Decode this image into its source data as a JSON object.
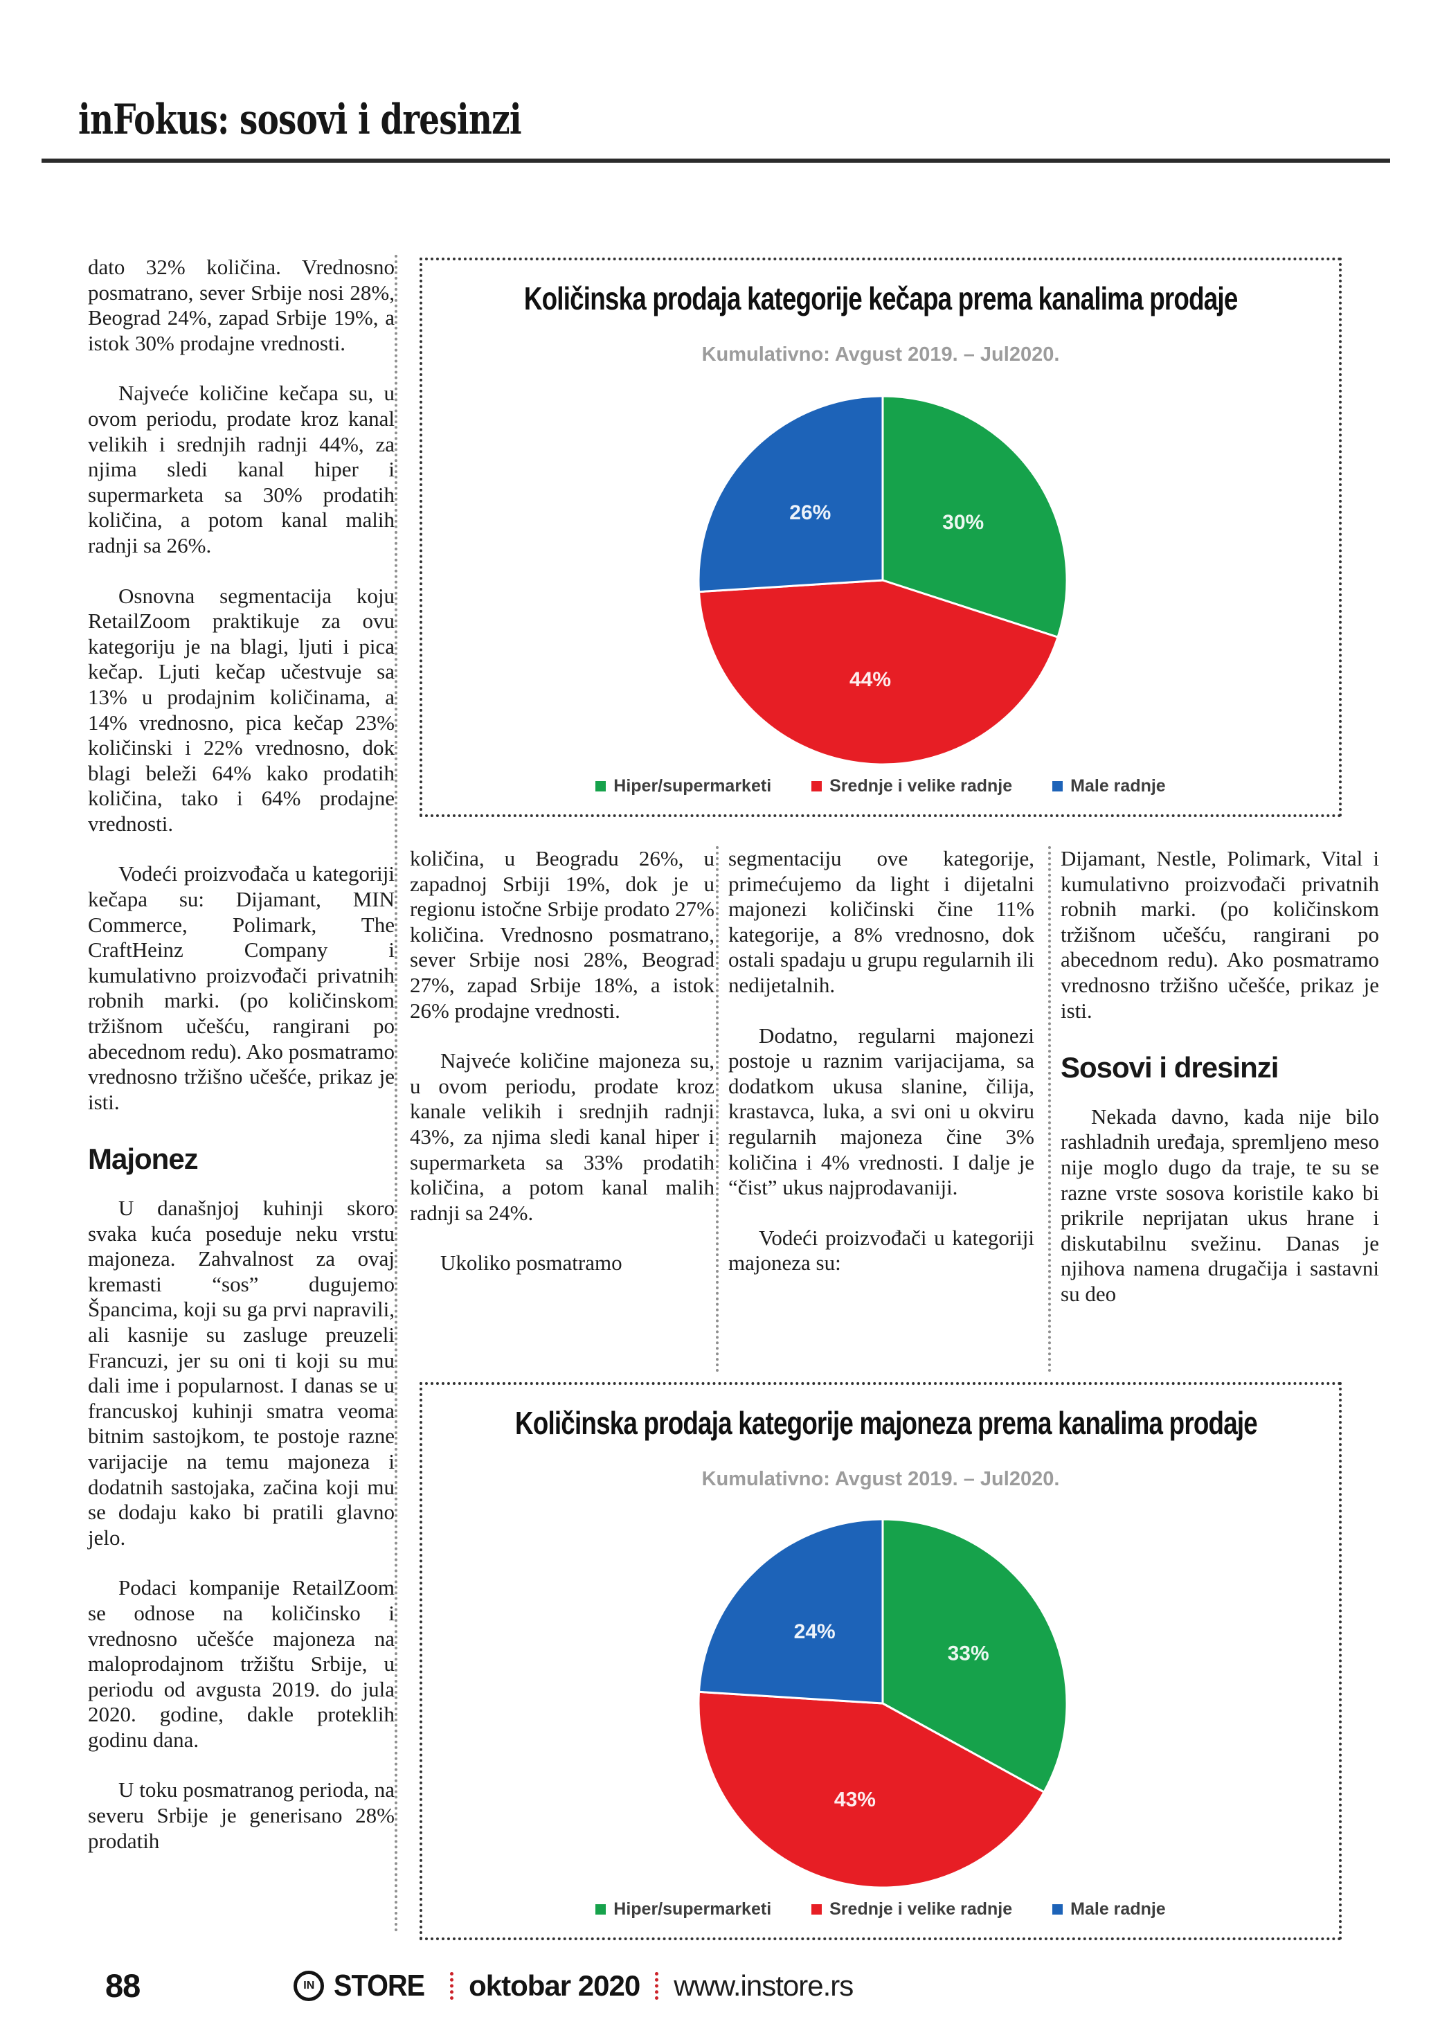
{
  "header": {
    "title": "inFokus: sosovi i dresinzi"
  },
  "left_column": {
    "paragraphs": [
      "dato 32% količina. Vrednosno posmatrano, sever Srbije nosi 28%, Beograd 24%, zapad Srbije 19%, a istok 30% prodajne vrednosti.",
      "Najveće količine kečapa su, u ovom periodu, prodate kroz kanal velikih i srednjih radnji 44%, za njima sledi kanal hiper i supermarketa sa 30% prodatih količina, a potom kanal malih radnji sa 26%.",
      "Osnovna segmentacija koju RetailZoom praktikuje za ovu kategoriju je na blagi, ljuti i pica kečap. Ljuti kečap učestvuje sa 13% u prodajnim količinama, a 14% vrednosno, pica kečap 23% količinski i 22% vrednosno, dok blagi beleži 64% kako prodatih količina, tako i 64% prodajne vrednosti.",
      "Vodeći proizvođača u kategoriji kečapa su: Dijamant, MIN Commerce, Polimark, The CraftHeinz Company i kumulativno proizvođači privatnih robnih marki. (po količinskom tržišnom učešću, rangirani po abecednom redu). Ako posmatramo vrednosno tržišno učešće, prikaz je isti.",
      "U današnjoj kuhinji skoro svaka kuća poseduje neku vrstu majoneza. Zahvalnost za ovaj kremasti “sos” dugujemo Špancima, koji su ga prvi napravili, ali kasnije su zasluge preuzeli Francuzi, jer su oni ti koji su mu dali ime i popularnost. I danas se u francuskoj kuhinji smatra veoma bitnim sastojkom, te postoje razne varijacije na temu majoneza i dodatnih sastojaka, začina koji mu se dodaju kako bi pratili glavno jelo.",
      "Podaci kompanije RetailZoom se odnose na količinsko i vrednosno učešće majoneza na maloprodajnom tržištu Srbije, u periodu od avgusta 2019. do jula 2020. godine, dakle proteklih godinu dana.",
      "U toku posmatranog perioda, na severu Srbije je generisano 28% prodatih"
    ],
    "heading": "Majonez"
  },
  "middle_column_1": {
    "paragraphs": [
      "količina, u Beogradu 26%, u zapadnoj Srbiji 19%, dok je u regionu istočne Srbije prodato 27% količina. Vrednosno posmatrano, sever Srbije nosi 28%, Beograd 27%, zapad Srbije 18%, a istok 26% prodajne vrednosti.",
      "Najveće količine majoneza su, u ovom periodu, prodate kroz kanale velikih i srednjih radnji 43%, za njima sledi kanal hiper i supermarketa sa 33% prodatih količina, a potom kanal malih radnji sa 24%.",
      "Ukoliko posmatramo"
    ]
  },
  "middle_column_2": {
    "paragraphs": [
      "segmentaciju ove kategorije, primećujemo da light i dijetalni majonezi količinski čine 11% kategorije, a 8% vrednosno, dok ostali spadaju u grupu regularnih ili nedijetalnih.",
      "Dodatno, regularni majonezi postoje u raznim varijacijama, sa dodatkom ukusa slanine, čilija, krastavca, luka, a svi oni u okviru regularnih majoneza čine 3% količina i 4% vrednosti. I dalje je “čist” ukus najprodavaniji.",
      "Vodeći proizvođači u kategoriji majoneza su:"
    ]
  },
  "right_column": {
    "paragraph_top": "Dijamant, Nestle, Polimark, Vital i kumulativno proizvođači privatnih robnih marki. (po količinskom tržišnom učešću, rangirani po abecednom redu). Ako posmatramo vrednosno tržišno učešće, prikaz je isti.",
    "heading": "Sosovi i dresinzi",
    "paragraph_bottom": "Nekada davno, kada nije bilo rashladnih uređaja, spremljeno meso nije moglo dugo da traje, te su se razne vrste sosova koristile kako bi prikrile neprijatan ukus hrane i diskutabilnu svežinu. Danas je njihova namena drugačija i sastavni su deo"
  },
  "footer": {
    "page_number": "88",
    "logo": "IN",
    "brand": "STORE",
    "issue": "oktobar 2020",
    "website": "www.instore.rs"
  },
  "chart_data": [
    {
      "type": "pie",
      "title": "Količinska prodaja kategorije kečapa prema kanalima prodaje",
      "subtitle": "Kumulativno: Avgust 2019. – Jul2020.",
      "categories": [
        "Hiper/supermarketi",
        "Srednje i velike radnje",
        "Male radnje"
      ],
      "values": [
        30,
        44,
        26
      ],
      "value_labels": [
        "30%",
        "44%",
        "26%"
      ],
      "colors": [
        "#16a24b",
        "#e71e25",
        "#1d63b8"
      ],
      "start_angle": "12 o'clock, clockwise",
      "legend_position": "bottom"
    },
    {
      "type": "pie",
      "title": "Količinska prodaja kategorije majoneza prema kanalima prodaje",
      "subtitle": "Kumulativno: Avgust 2019. – Jul2020.",
      "categories": [
        "Hiper/supermarketi",
        "Srednje i velike radnje",
        "Male radnje"
      ],
      "values": [
        33,
        43,
        24
      ],
      "value_labels": [
        "33%",
        "43%",
        "24%"
      ],
      "colors": [
        "#16a24b",
        "#e71e25",
        "#1d63b8"
      ],
      "start_angle": "12 o'clock, clockwise",
      "legend_position": "bottom"
    }
  ]
}
